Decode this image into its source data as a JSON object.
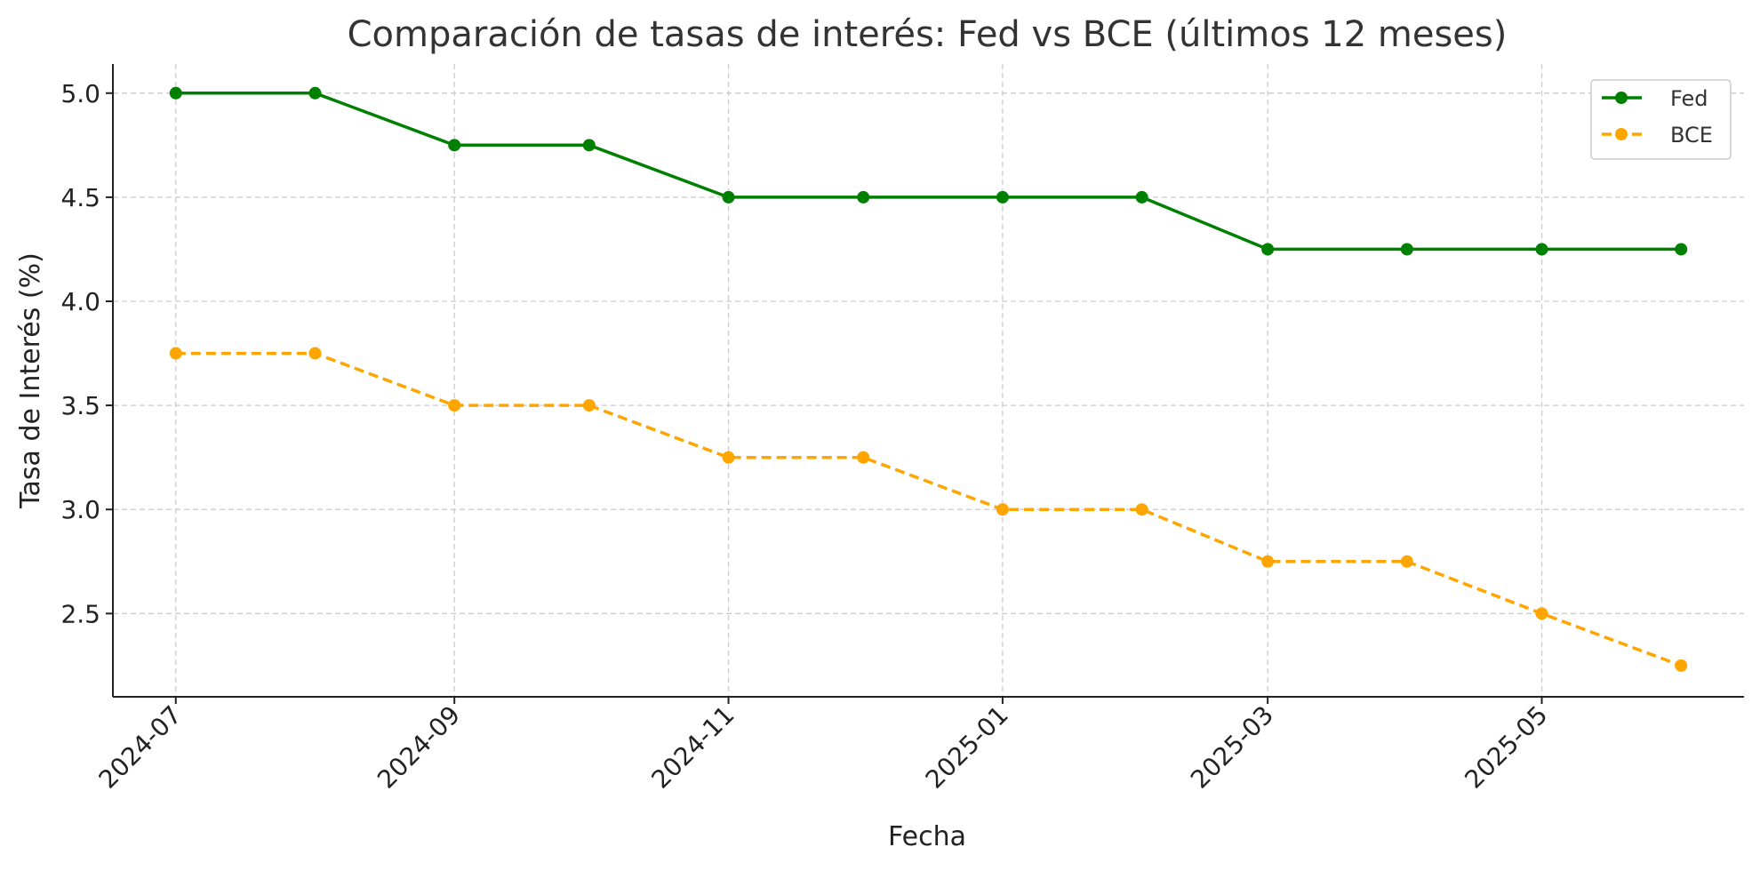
{
  "chart_data": {
    "type": "line",
    "title": "Comparación de tasas de interés: Fed vs BCE (últimos 12 meses)",
    "xlabel": "Fecha",
    "ylabel": "Tasa de Interés (%)",
    "x": [
      "2024-07-01",
      "2024-08-01",
      "2024-09-01",
      "2024-10-01",
      "2024-11-01",
      "2024-12-01",
      "2025-01-01",
      "2025-02-01",
      "2025-03-01",
      "2025-04-01",
      "2025-05-01",
      "2025-06-01"
    ],
    "x_ticks": [
      "2024-07",
      "2024-09",
      "2024-11",
      "2025-01",
      "2025-03",
      "2025-05"
    ],
    "y_ticks": [
      "2.5",
      "3.0",
      "3.5",
      "4.0",
      "4.5",
      "5.0"
    ],
    "ylim": [
      2.1,
      5.14
    ],
    "xlim": [
      "2024-06-17",
      "2025-06-15"
    ],
    "grid": true,
    "legend_position": "top-right",
    "series": [
      {
        "name": "Fed",
        "color": "#008000",
        "line_style": "solid",
        "marker": "circle",
        "values": [
          5.0,
          5.0,
          4.75,
          4.75,
          4.5,
          4.5,
          4.5,
          4.5,
          4.25,
          4.25,
          4.25,
          4.25
        ]
      },
      {
        "name": "BCE",
        "color": "#FFA500",
        "line_style": "dashed",
        "marker": "circle",
        "values": [
          3.75,
          3.75,
          3.5,
          3.5,
          3.25,
          3.25,
          3.0,
          3.0,
          2.75,
          2.75,
          2.5,
          2.25
        ]
      }
    ]
  }
}
